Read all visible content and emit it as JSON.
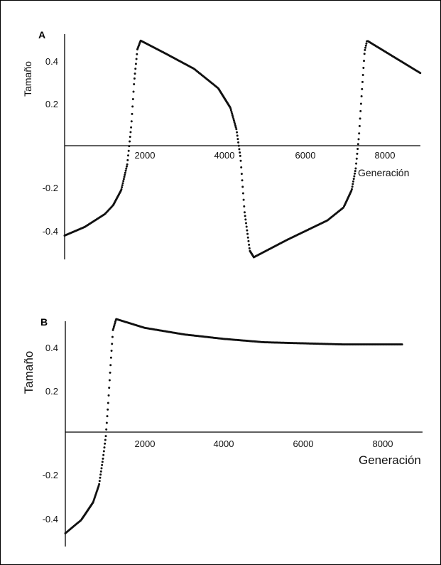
{
  "chart_data": [
    {
      "panel": "A",
      "type": "scatter",
      "xlabel": "Generación",
      "ylabel": "Tamaño",
      "xticks": [
        "2000",
        "4000",
        "6000",
        "8000"
      ],
      "yticks": [
        "0.4",
        "0.2",
        "-0.2",
        "-0.4"
      ],
      "xlim": [
        0,
        8800
      ],
      "ylim": [
        -0.52,
        0.52
      ],
      "series": [
        {
          "color": "#111111",
          "points": [
            [
              0,
              -0.41
            ],
            [
              500,
              -0.37
            ],
            [
              1000,
              -0.31
            ],
            [
              1200,
              -0.27
            ],
            [
              1400,
              -0.2
            ],
            [
              1550,
              -0.08
            ],
            [
              1650,
              0.1
            ],
            [
              1720,
              0.3
            ],
            [
              1800,
              0.45
            ],
            [
              1880,
              0.49
            ],
            [
              2500,
              0.43
            ],
            [
              3200,
              0.36
            ],
            [
              3800,
              0.27
            ],
            [
              4100,
              0.18
            ],
            [
              4250,
              0.08
            ],
            [
              4350,
              -0.05
            ],
            [
              4450,
              -0.3
            ],
            [
              4580,
              -0.48
            ],
            [
              4680,
              -0.51
            ],
            [
              5500,
              -0.43
            ],
            [
              6500,
              -0.34
            ],
            [
              6900,
              -0.28
            ],
            [
              7100,
              -0.2
            ],
            [
              7200,
              -0.1
            ],
            [
              7280,
              0.05
            ],
            [
              7350,
              0.25
            ],
            [
              7420,
              0.44
            ],
            [
              7480,
              0.49
            ],
            [
              8800,
              0.34
            ]
          ]
        }
      ]
    },
    {
      "panel": "B",
      "type": "scatter",
      "xlabel": "Generación",
      "ylabel": "Tamaño",
      "xticks": [
        "2000",
        "4000",
        "6000",
        "8000"
      ],
      "yticks": [
        "0.4",
        "0.2",
        "-0.2",
        "-0.4"
      ],
      "xlim": [
        0,
        9000
      ],
      "ylim": [
        -0.5,
        0.52
      ],
      "series": [
        {
          "color": "#111111",
          "points": [
            [
              0,
              -0.44
            ],
            [
              400,
              -0.38
            ],
            [
              700,
              -0.3
            ],
            [
              850,
              -0.22
            ],
            [
              950,
              -0.1
            ],
            [
              1020,
              0.0
            ],
            [
              1080,
              0.15
            ],
            [
              1150,
              0.35
            ],
            [
              1200,
              0.48
            ],
            [
              1280,
              0.53
            ],
            [
              2000,
              0.49
            ],
            [
              3000,
              0.46
            ],
            [
              4000,
              0.44
            ],
            [
              5000,
              0.425
            ],
            [
              6000,
              0.42
            ],
            [
              7000,
              0.415
            ],
            [
              8500,
              0.415
            ]
          ]
        }
      ]
    }
  ]
}
